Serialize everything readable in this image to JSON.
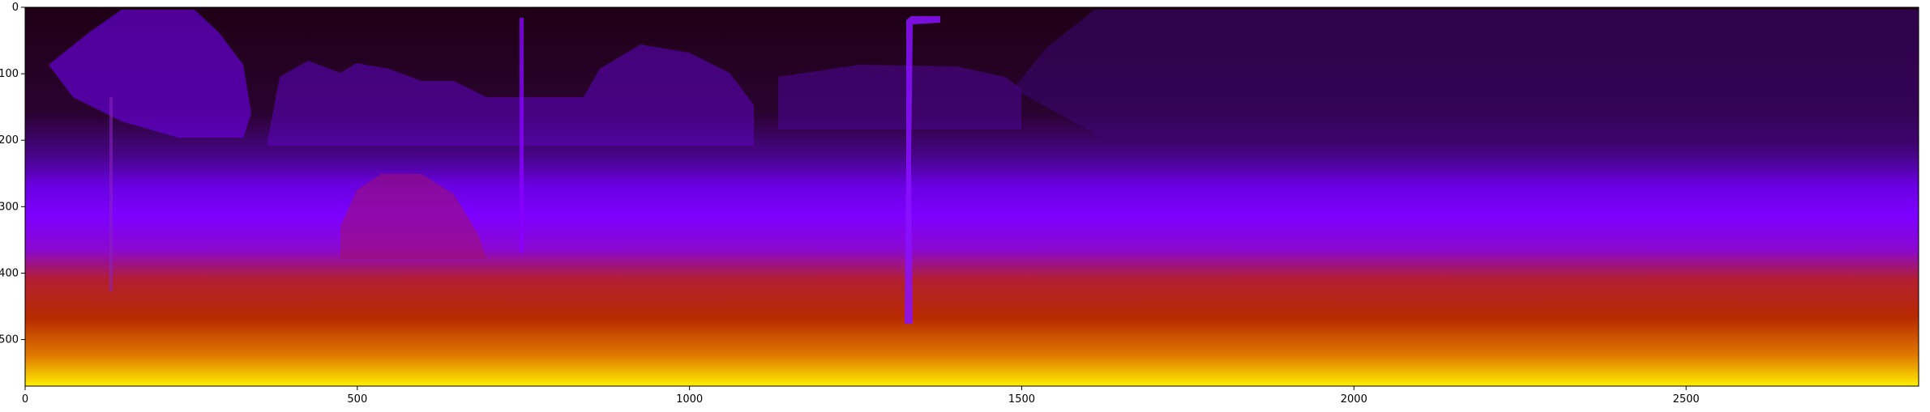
{
  "image": {
    "description_colormap": "gnuplot",
    "colors": {
      "far": "#1f0015",
      "mid_dark": "#4a0590",
      "mid": "#7d00ff",
      "near_mid": "#b31f00",
      "near": "#ffee00",
      "axis": "#000000",
      "background": "#ffffff"
    }
  },
  "axes": {
    "x_range": [
      0,
      2850
    ],
    "y_range": [
      570,
      0
    ],
    "x_ticks": [
      {
        "value": 0,
        "label": "0"
      },
      {
        "value": 500,
        "label": "500"
      },
      {
        "value": 1000,
        "label": "1000"
      },
      {
        "value": 1500,
        "label": "1500"
      },
      {
        "value": 2000,
        "label": "2000"
      },
      {
        "value": 2500,
        "label": "2500"
      }
    ],
    "y_ticks": [
      {
        "value": 0,
        "label": "0"
      },
      {
        "value": 100,
        "label": "100"
      },
      {
        "value": 200,
        "label": "200"
      },
      {
        "value": 300,
        "label": "300"
      },
      {
        "value": 400,
        "label": "400"
      },
      {
        "value": 500,
        "label": "500"
      }
    ]
  }
}
